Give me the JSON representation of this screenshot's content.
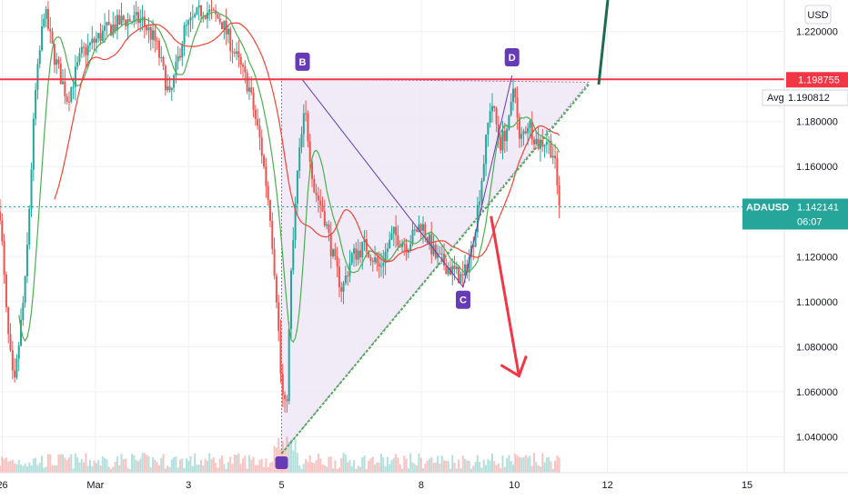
{
  "chart_data": {
    "type": "candlestick",
    "symbol": "ADAUSD",
    "currency": "USD",
    "y_axis": {
      "ticks": [
        "1.220000",
        "1.200000",
        "1.180000",
        "1.160000",
        "1.140000",
        "1.120000",
        "1.100000",
        "1.080000",
        "1.060000",
        "1.040000"
      ],
      "tick_values": [
        1.22,
        1.2,
        1.18,
        1.16,
        1.14,
        1.12,
        1.1,
        1.08,
        1.06,
        1.04
      ],
      "range": [
        1.024,
        1.234
      ]
    },
    "x_axis": {
      "ticks": [
        "26",
        "Mar",
        "3",
        "5",
        "8",
        "10",
        "12",
        "15"
      ],
      "tick_days": [
        -2,
        0,
        2,
        4,
        7,
        9,
        11,
        14
      ],
      "range": [
        -2.05,
        14.8
      ]
    },
    "price_badges": {
      "resistance": {
        "value": "1.198755",
        "color": "#f23645"
      },
      "average": {
        "label": "Avg",
        "value": "1.190812"
      },
      "last": {
        "symbol": "ADAUSD",
        "value": "1.142141",
        "countdown": "06:07",
        "color": "#26a69a"
      }
    },
    "pattern_points": [
      {
        "label": "B",
        "day": 4.45,
        "price": 1.1985
      },
      {
        "label": "C",
        "day": 7.9,
        "price": 1.1065
      },
      {
        "label": "D",
        "day": 8.95,
        "price": 1.2005
      }
    ],
    "triangle": {
      "apex_low": {
        "day": 4.0,
        "price": 1.0325
      },
      "top_left": {
        "day": 4.0,
        "price": 1.199
      },
      "top_right": {
        "day": 10.6,
        "price": 1.1975
      },
      "support_line_end": {
        "day": 10.6,
        "price": 1.1965
      }
    },
    "resistance_price": 1.198755,
    "last_price": 1.142141,
    "projection_arrow": {
      "from": {
        "day": 8.5,
        "price": 1.138
      },
      "to": {
        "day": 9.1,
        "price": 1.067
      }
    },
    "colors": {
      "up": "#26a69a",
      "down": "#ef5350",
      "sma_fast": "#4caf50",
      "sma_slow": "#f44336",
      "triangle_fill": "#ede7f6",
      "pattern_line": "#673ab7",
      "support_line": "#4caf50",
      "resistance_line": "#f23645",
      "grid": "#eef0f4",
      "arrow_down": "#f23645",
      "arrow_up": "#1e6b52"
    }
  }
}
